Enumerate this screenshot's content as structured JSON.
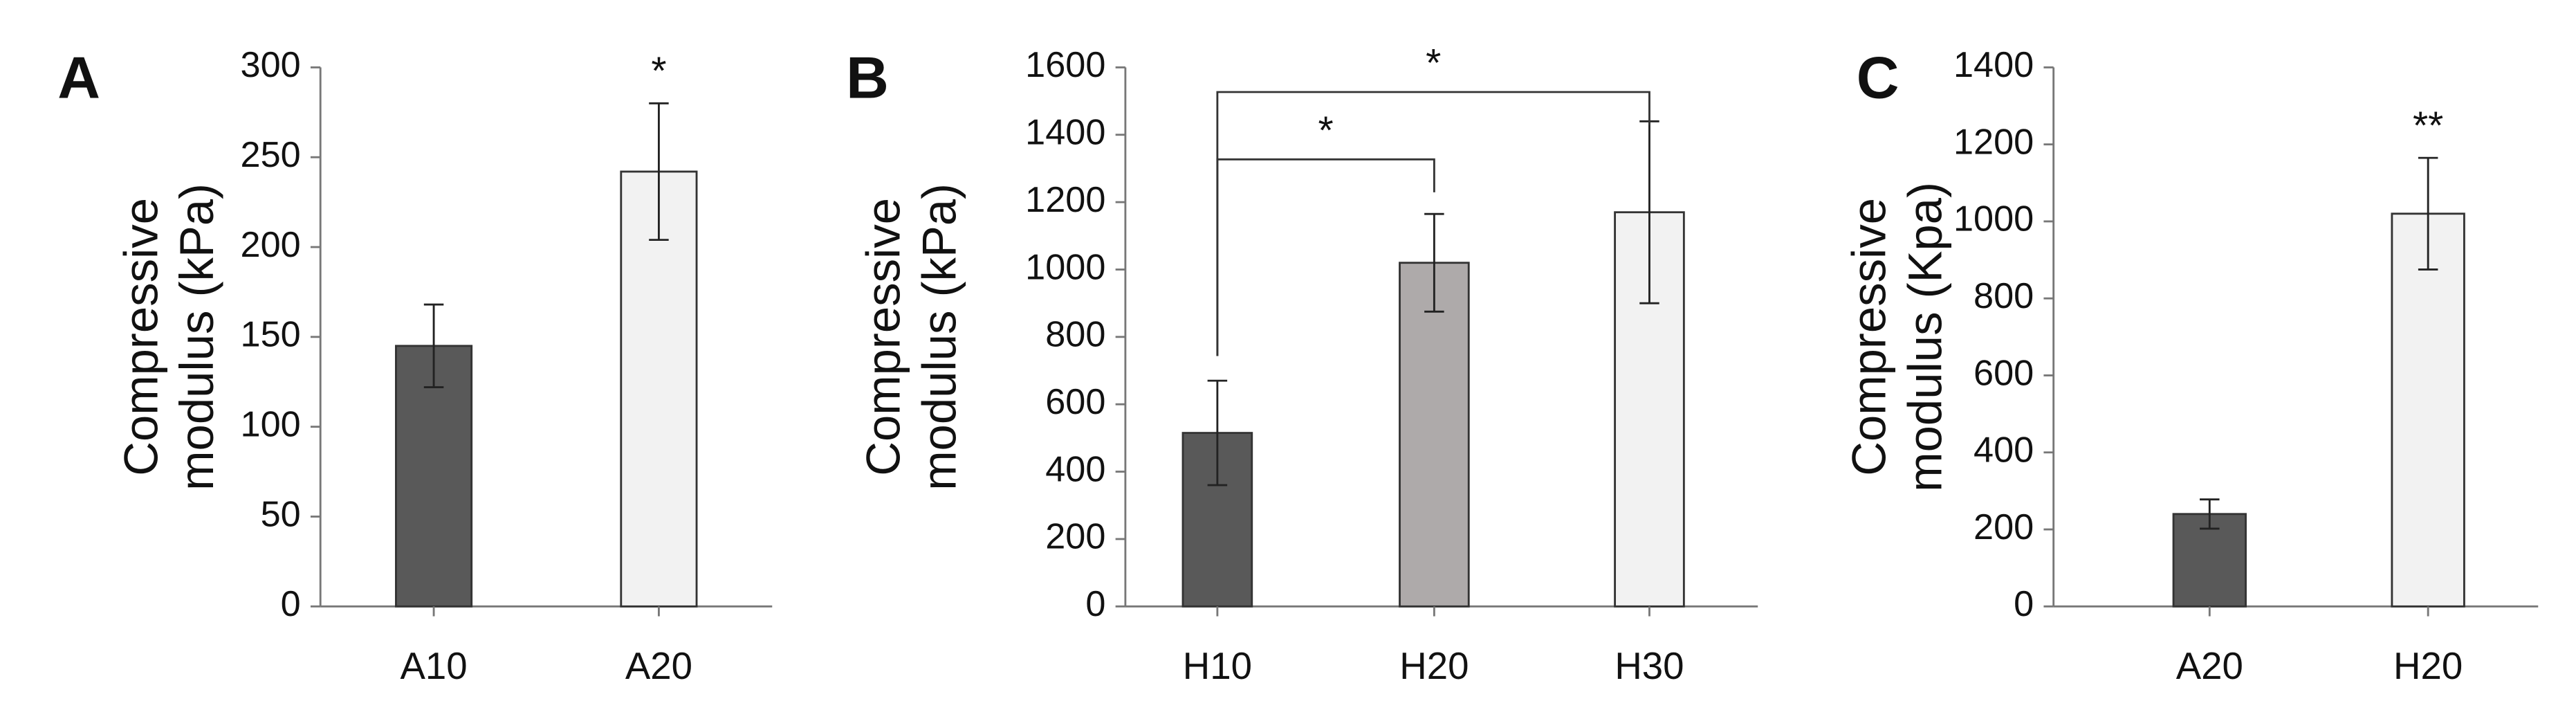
{
  "chart_data": [
    {
      "type": "bar",
      "panel_label": "A",
      "ylabel": [
        "Compressive",
        "modulus (kPa)"
      ],
      "categories": [
        "A10",
        "A20"
      ],
      "values": [
        145,
        242
      ],
      "errors": [
        23,
        38
      ],
      "colors": [
        "#595959",
        "#f2f2f2"
      ],
      "ylim": [
        0,
        300
      ],
      "yticks": [
        0,
        50,
        100,
        150,
        200,
        250,
        300
      ],
      "annotations": [
        {
          "text": "*",
          "category": 1
        }
      ]
    },
    {
      "type": "bar",
      "panel_label": "B",
      "ylabel": [
        "Compressive",
        "modulus (kPa)"
      ],
      "categories": [
        "H10",
        "H20",
        "H30"
      ],
      "values": [
        515,
        1020,
        1170
      ],
      "errors": [
        155,
        145,
        270
      ],
      "colors": [
        "#595959",
        "#aeaaaa",
        "#f2f2f2"
      ],
      "ylim": [
        0,
        1600
      ],
      "yticks": [
        0,
        200,
        400,
        600,
        800,
        1000,
        1200,
        1400,
        1600
      ],
      "brackets": [
        {
          "text": "*",
          "from": 0,
          "to": 1
        },
        {
          "text": "*",
          "from": 0,
          "to": 2
        }
      ]
    },
    {
      "type": "bar",
      "panel_label": "C",
      "ylabel": [
        "Compressive",
        "modulus (Kpa)"
      ],
      "categories": [
        "A20",
        "H20"
      ],
      "values": [
        240,
        1020
      ],
      "errors": [
        38,
        145
      ],
      "colors": [
        "#595959",
        "#f2f2f2"
      ],
      "ylim": [
        0,
        1400
      ],
      "yticks": [
        0,
        200,
        400,
        600,
        800,
        1000,
        1200,
        1400
      ],
      "annotations": [
        {
          "text": "**",
          "category": 1
        }
      ]
    }
  ]
}
